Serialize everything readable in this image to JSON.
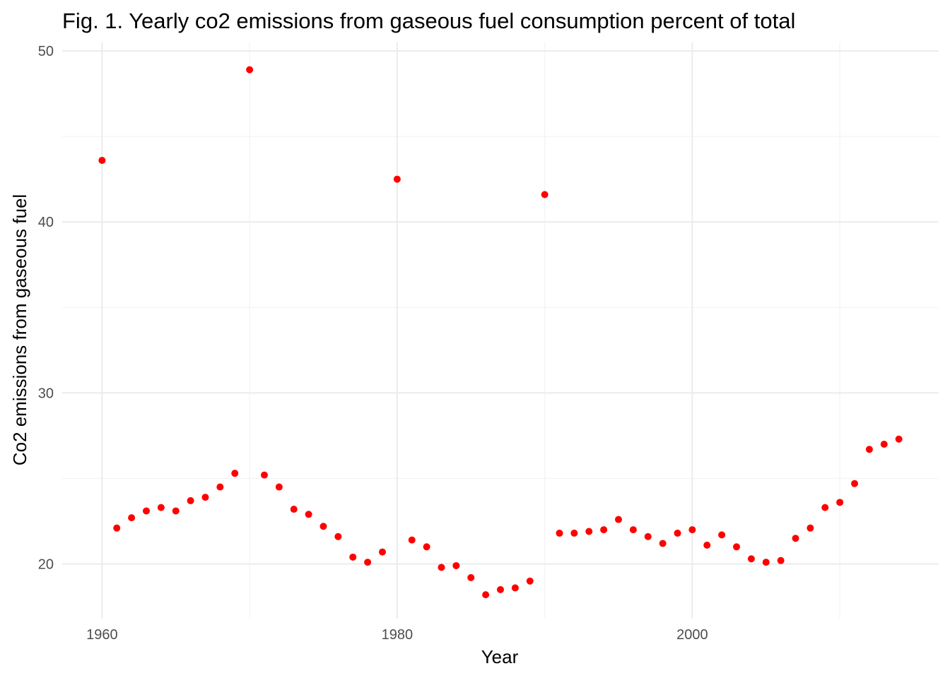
{
  "chart_data": {
    "type": "scatter",
    "title": "Fig. 1. Yearly co2 emissions from gaseous fuel consumption percent of total",
    "xlabel": "Year",
    "ylabel": "Co2 emissions from gaseous fuel",
    "x_ticks": [
      1960,
      1980,
      2000
    ],
    "y_ticks": [
      20,
      30,
      40,
      50
    ],
    "x_minor_ticks": [
      1970,
      1990,
      2010
    ],
    "y_minor_ticks": [
      25,
      35,
      45
    ],
    "xlim": [
      1957.3,
      2016.7
    ],
    "ylim": [
      16.8,
      50.5
    ],
    "grid": true,
    "legend": "none",
    "point_color": "#ff0000",
    "x": [
      1960,
      1961,
      1962,
      1963,
      1964,
      1965,
      1966,
      1967,
      1968,
      1969,
      1970,
      1971,
      1972,
      1973,
      1974,
      1975,
      1976,
      1977,
      1978,
      1979,
      1980,
      1981,
      1982,
      1983,
      1984,
      1985,
      1986,
      1987,
      1988,
      1989,
      1990,
      1991,
      1992,
      1993,
      1994,
      1995,
      1996,
      1997,
      1998,
      1999,
      2000,
      2001,
      2002,
      2003,
      2004,
      2005,
      2006,
      2007,
      2008,
      2009,
      2010,
      2011,
      2012,
      2013,
      2014
    ],
    "y": [
      43.6,
      22.1,
      22.7,
      23.1,
      23.3,
      23.1,
      23.7,
      23.9,
      24.5,
      25.3,
      48.9,
      25.2,
      24.5,
      23.2,
      22.9,
      22.2,
      21.6,
      20.4,
      20.1,
      20.7,
      42.5,
      21.4,
      21.0,
      19.8,
      19.9,
      19.2,
      18.2,
      18.5,
      18.6,
      19.0,
      41.6,
      21.8,
      21.8,
      21.9,
      22.0,
      22.6,
      22.0,
      21.6,
      21.2,
      21.8,
      22.0,
      21.1,
      21.7,
      21.0,
      20.3,
      20.1,
      20.2,
      21.5,
      22.1,
      23.3,
      23.6,
      24.7,
      26.7,
      27.0,
      27.3
    ]
  }
}
